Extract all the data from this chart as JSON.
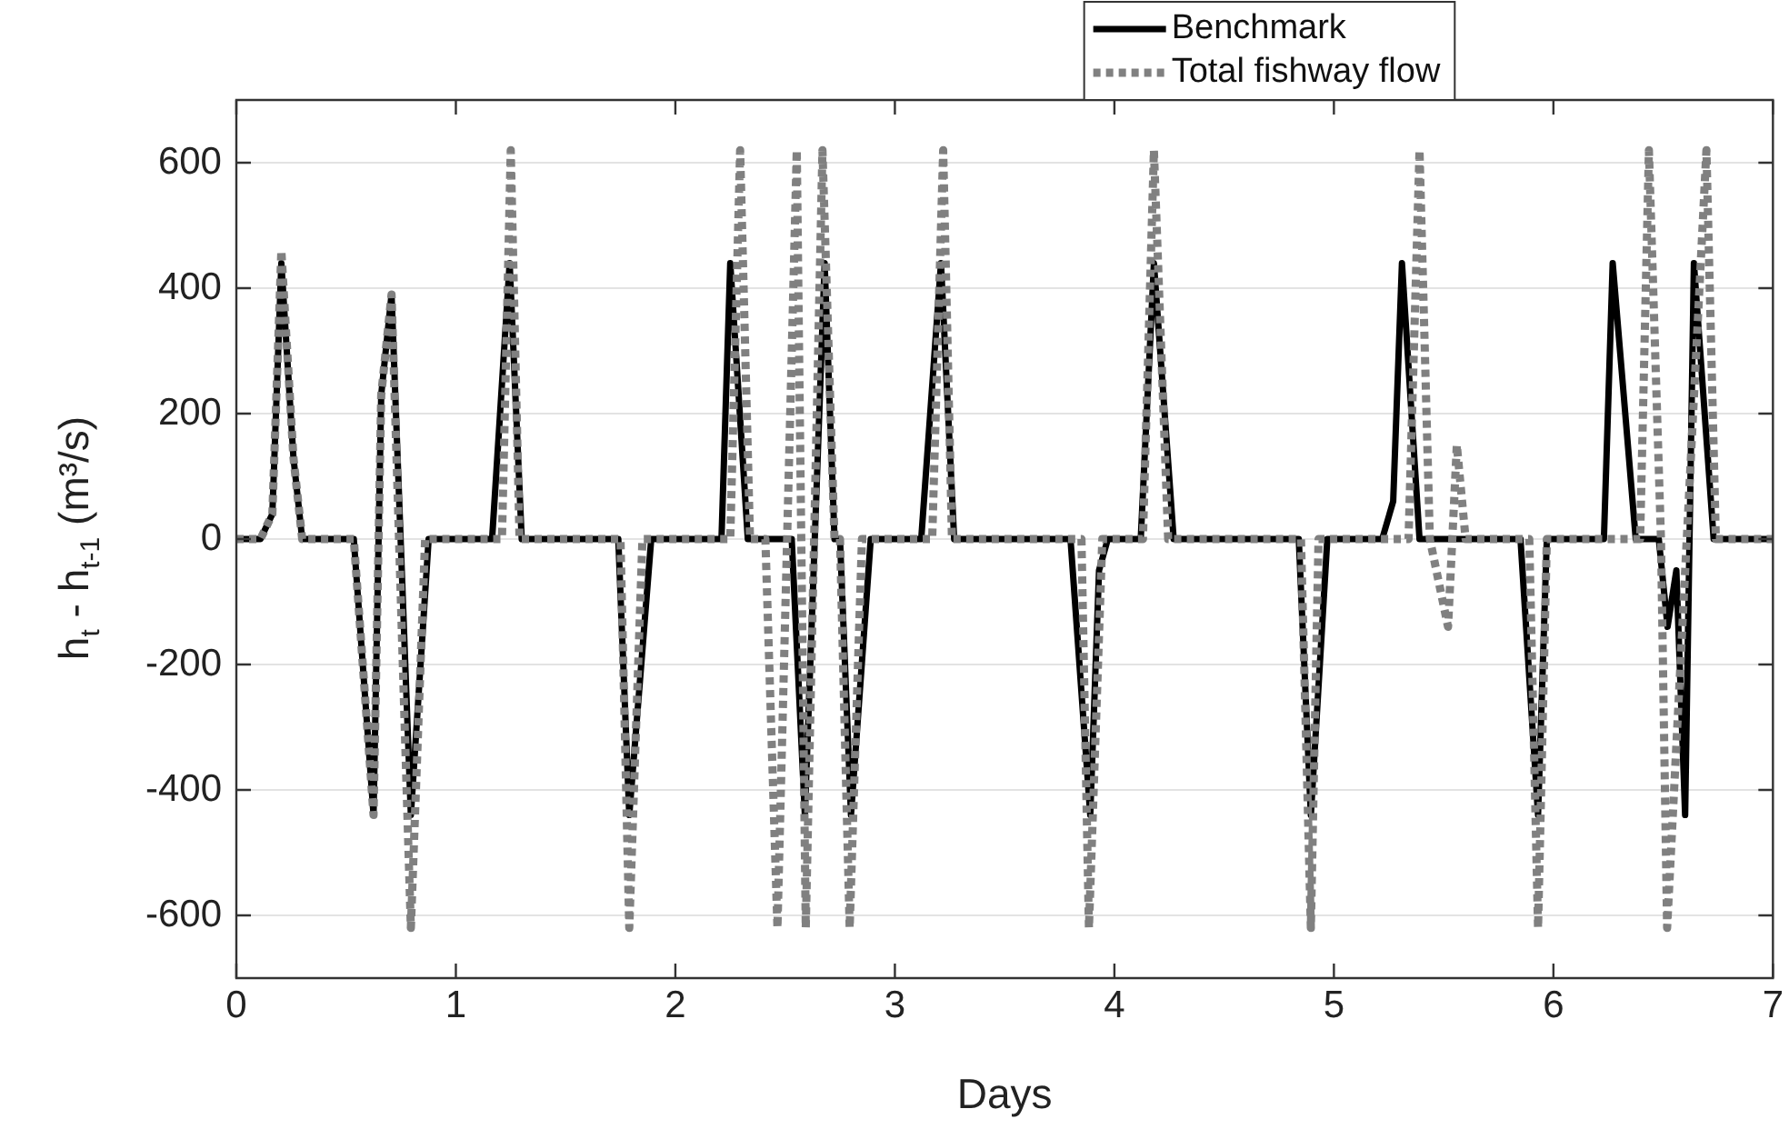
{
  "chart_data": {
    "type": "line",
    "xlabel": "Days",
    "ylabel": "h$_{t}$ - h$_{t-1}$ (m³/s)",
    "xlim": [
      0,
      7
    ],
    "xticks": [
      0,
      1,
      2,
      3,
      4,
      5,
      6,
      7
    ],
    "ylim": [
      -700,
      700
    ],
    "yticks": [
      -600,
      -400,
      -200,
      0,
      200,
      400,
      600
    ],
    "grid": "y",
    "legend": "top right",
    "marker": "none",
    "series": [
      {
        "name": "Benchmark",
        "color": "#000000",
        "line_style": "solid",
        "x": [
          0,
          0.11,
          0.164,
          0.205,
          0.26,
          0.3,
          0.535,
          0.625,
          0.66,
          0.707,
          0.795,
          0.876,
          1.165,
          1.245,
          1.3,
          1.74,
          1.79,
          1.89,
          2.21,
          2.25,
          2.33,
          2.53,
          2.59,
          2.68,
          2.725,
          2.75,
          2.8,
          2.89,
          3.12,
          3.21,
          3.27,
          3.8,
          3.89,
          3.93,
          3.97,
          4.12,
          4.18,
          4.27,
          4.84,
          4.895,
          4.97,
          5.22,
          5.27,
          5.31,
          5.39,
          5.85,
          5.93,
          5.97,
          6.23,
          6.27,
          6.375,
          6.48,
          6.52,
          6.56,
          6.6,
          6.64,
          6.73,
          7
        ],
        "values": [
          0,
          0,
          40,
          440,
          130,
          0,
          0,
          -440,
          230,
          390,
          -440,
          0,
          0,
          440,
          0,
          0,
          -440,
          0,
          0,
          440,
          0,
          0,
          -440,
          440,
          0,
          0,
          -440,
          0,
          0,
          440,
          0,
          0,
          -440,
          -50,
          0,
          0,
          440,
          0,
          0,
          -440,
          0,
          0,
          60,
          440,
          0,
          0,
          -440,
          0,
          0,
          440,
          0,
          0,
          -140,
          -50,
          -440,
          440,
          0,
          0
        ]
      },
      {
        "name": "Total fishway flow",
        "color": "#808080",
        "line_style": "dotted",
        "x": [
          0,
          0.11,
          0.164,
          0.205,
          0.26,
          0.3,
          0.535,
          0.625,
          0.66,
          0.707,
          0.795,
          0.86,
          1.21,
          1.25,
          1.29,
          1.75,
          1.79,
          1.85,
          2.25,
          2.295,
          2.34,
          2.41,
          2.465,
          2.553,
          2.594,
          2.67,
          2.725,
          2.75,
          2.794,
          2.85,
          3.17,
          3.22,
          3.26,
          3.85,
          3.884,
          3.945,
          4.13,
          4.18,
          4.245,
          4.85,
          4.895,
          4.93,
          5.34,
          5.39,
          5.437,
          5.52,
          5.56,
          5.6,
          5.89,
          5.93,
          5.97,
          6.395,
          6.435,
          6.49,
          6.518,
          6.697,
          6.74,
          7
        ],
        "values": [
          0,
          0,
          40,
          460,
          130,
          0,
          0,
          -440,
          230,
          390,
          -620,
          0,
          0,
          620,
          0,
          0,
          -620,
          0,
          0,
          620,
          0,
          0,
          -620,
          620,
          -620,
          620,
          0,
          0,
          -620,
          0,
          0,
          620,
          0,
          0,
          -620,
          0,
          0,
          620,
          0,
          0,
          -620,
          0,
          0,
          620,
          0,
          -140,
          150,
          0,
          0,
          -620,
          0,
          0,
          620,
          0,
          -620,
          620,
          0,
          0
        ]
      }
    ]
  }
}
